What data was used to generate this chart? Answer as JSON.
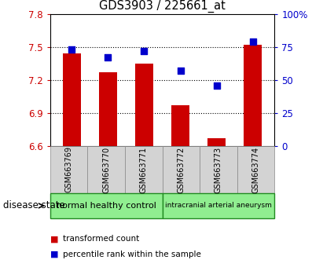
{
  "title": "GDS3903 / 225661_at",
  "samples": [
    "GSM663769",
    "GSM663770",
    "GSM663771",
    "GSM663772",
    "GSM663773",
    "GSM663774"
  ],
  "transformed_count": [
    7.44,
    7.27,
    7.35,
    6.97,
    6.67,
    7.52
  ],
  "percentile_rank": [
    73,
    67,
    72,
    57,
    46,
    79
  ],
  "left_ylim": [
    6.6,
    7.8
  ],
  "right_ylim": [
    0,
    100
  ],
  "left_yticks": [
    6.6,
    6.9,
    7.2,
    7.5,
    7.8
  ],
  "right_yticks": [
    0,
    25,
    50,
    75,
    100
  ],
  "right_yticklabels": [
    "0",
    "25",
    "50",
    "75",
    "100%"
  ],
  "bar_color": "#cc0000",
  "dot_color": "#0000cc",
  "bar_width": 0.5,
  "groups": [
    {
      "label": "normal healthy control",
      "indices": [
        0,
        1,
        2
      ],
      "color": "#90ee90"
    },
    {
      "label": "intracranial arterial aneurysm",
      "indices": [
        3,
        4,
        5
      ],
      "color": "#90ee90"
    }
  ],
  "group_label_prefix": "disease state",
  "legend_items": [
    {
      "label": "transformed count",
      "color": "#cc0000"
    },
    {
      "label": "percentile rank within the sample",
      "color": "#0000cc"
    }
  ],
  "background_color": "#ffffff",
  "plot_bg_color": "#ffffff",
  "tick_bg_color": "#d3d3d3",
  "grid_color": "#000000",
  "title_color": "#000000",
  "left_tick_color": "#cc0000",
  "right_tick_color": "#0000cc"
}
